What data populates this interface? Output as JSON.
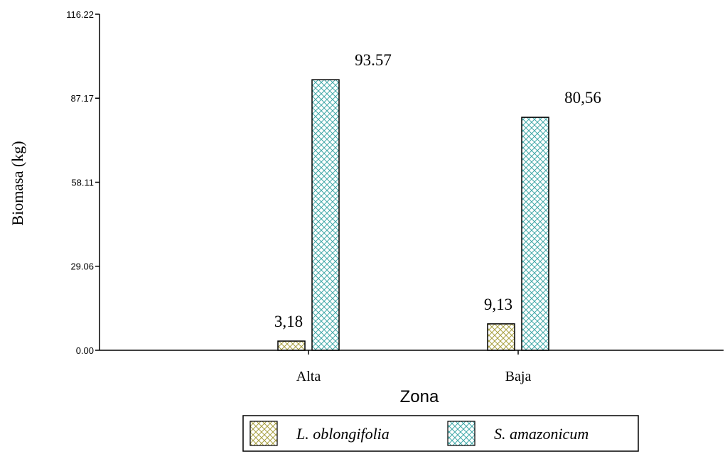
{
  "chart_data": {
    "type": "bar",
    "categories": [
      "Alta",
      "Baja"
    ],
    "series": [
      {
        "name": "L. oblongifolia",
        "values": [
          3.18,
          9.13
        ],
        "labels": [
          "3,18",
          "9,13"
        ],
        "color": "#a8a040"
      },
      {
        "name": "S. amazonicum",
        "values": [
          93.57,
          80.56
        ],
        "labels": [
          "93.57",
          "80,56"
        ],
        "color": "#40a8a8"
      }
    ],
    "xlabel": "Zona",
    "ylabel": "Biomasa (kg)",
    "ylim": [
      0,
      116.22
    ],
    "yticks": [
      "0.00",
      "29.06",
      "58.11",
      "87.17",
      "116.22"
    ],
    "grid": false,
    "legend": "bottom"
  }
}
